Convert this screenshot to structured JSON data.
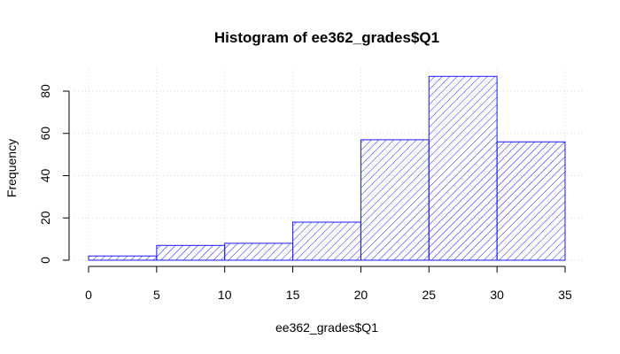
{
  "chart_data": {
    "type": "bar",
    "title": "Histogram of ee362_grades$Q1",
    "xlabel": "ee362_grades$Q1",
    "ylabel": "Frequency",
    "bins": [
      [
        0,
        5
      ],
      [
        5,
        10
      ],
      [
        10,
        15
      ],
      [
        15,
        20
      ],
      [
        20,
        25
      ],
      [
        25,
        30
      ],
      [
        30,
        35
      ]
    ],
    "values": [
      2,
      7,
      8,
      18,
      57,
      87,
      56
    ],
    "xlim": [
      0,
      35
    ],
    "ylim": [
      0,
      90
    ],
    "x_ticks": [
      "0",
      "5",
      "10",
      "15",
      "20",
      "25",
      "30",
      "35"
    ],
    "y_ticks": [
      "0",
      "20",
      "40",
      "60",
      "80"
    ],
    "grid": true,
    "bar_color": "#1a1aff",
    "bar_fill": "diagonal-hatch"
  }
}
